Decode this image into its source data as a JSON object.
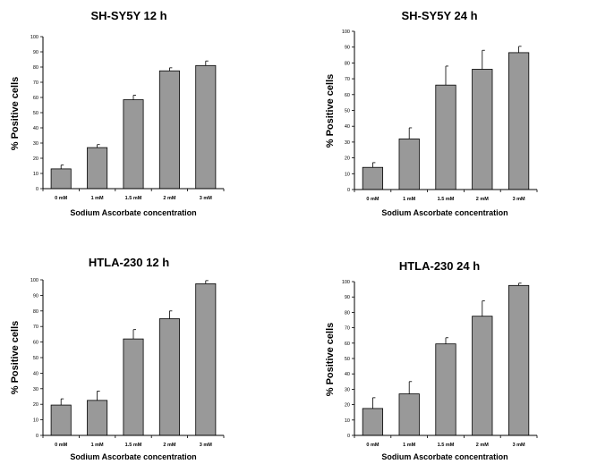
{
  "chart_data": [
    {
      "type": "bar",
      "title": "SH-SY5Y 12 h",
      "xlabel": "Sodium Ascorbate concentration",
      "ylabel": "% Positive cells",
      "categories": [
        "0 mM",
        "1 mM",
        "1.5 mM",
        "2 mM",
        "3 mM"
      ],
      "values": [
        13,
        27,
        58.5,
        77.5,
        81
      ],
      "errors": [
        2.5,
        2,
        3,
        2,
        3
      ],
      "ylim": [
        0,
        100
      ],
      "yticks": [
        0,
        10,
        20,
        30,
        40,
        50,
        60,
        70,
        80,
        90,
        100
      ],
      "bar_color": "#999999",
      "grid": false
    },
    {
      "type": "bar",
      "title": "SH-SY5Y 24 h",
      "xlabel": "Sodium Ascorbate concentration",
      "ylabel": "% Positive cells",
      "categories": [
        "0 mM",
        "1 mM",
        "1.5 mM",
        "2 mM",
        "3 mM"
      ],
      "values": [
        14,
        32,
        66,
        76,
        86.5
      ],
      "errors": [
        3,
        7,
        12,
        12,
        4
      ],
      "ylim": [
        0,
        100
      ],
      "yticks": [
        0,
        10,
        20,
        30,
        40,
        50,
        60,
        70,
        80,
        90,
        100
      ],
      "bar_color": "#999999",
      "grid": false
    },
    {
      "type": "bar",
      "title": "HTLA-230 12 h",
      "xlabel": "Sodium Ascorbate concentration",
      "ylabel": "% Positive cells",
      "categories": [
        "0 mM",
        "1 mM",
        "1.5 mM",
        "2 mM",
        "3 mM"
      ],
      "values": [
        19.5,
        22.5,
        62,
        75,
        97.5
      ],
      "errors": [
        4,
        6,
        6,
        5,
        2
      ],
      "ylim": [
        0,
        100
      ],
      "yticks": [
        0,
        10,
        20,
        30,
        40,
        50,
        60,
        70,
        80,
        90,
        100
      ],
      "bar_color": "#999999",
      "grid": false
    },
    {
      "type": "bar",
      "title": "HTLA-230 24 h",
      "xlabel": "Sodium Ascorbate concentration",
      "ylabel": "% Positive cells",
      "categories": [
        "0 mM",
        "1 mM",
        "1.5 mM",
        "2 mM",
        "3 mM"
      ],
      "values": [
        17.5,
        27,
        59.5,
        77.5,
        97.5
      ],
      "errors": [
        7,
        8,
        4,
        10,
        1.5
      ],
      "ylim": [
        0,
        100
      ],
      "yticks": [
        0,
        10,
        20,
        30,
        40,
        50,
        60,
        70,
        80,
        90,
        100
      ],
      "bar_color": "#999999",
      "grid": false
    }
  ]
}
